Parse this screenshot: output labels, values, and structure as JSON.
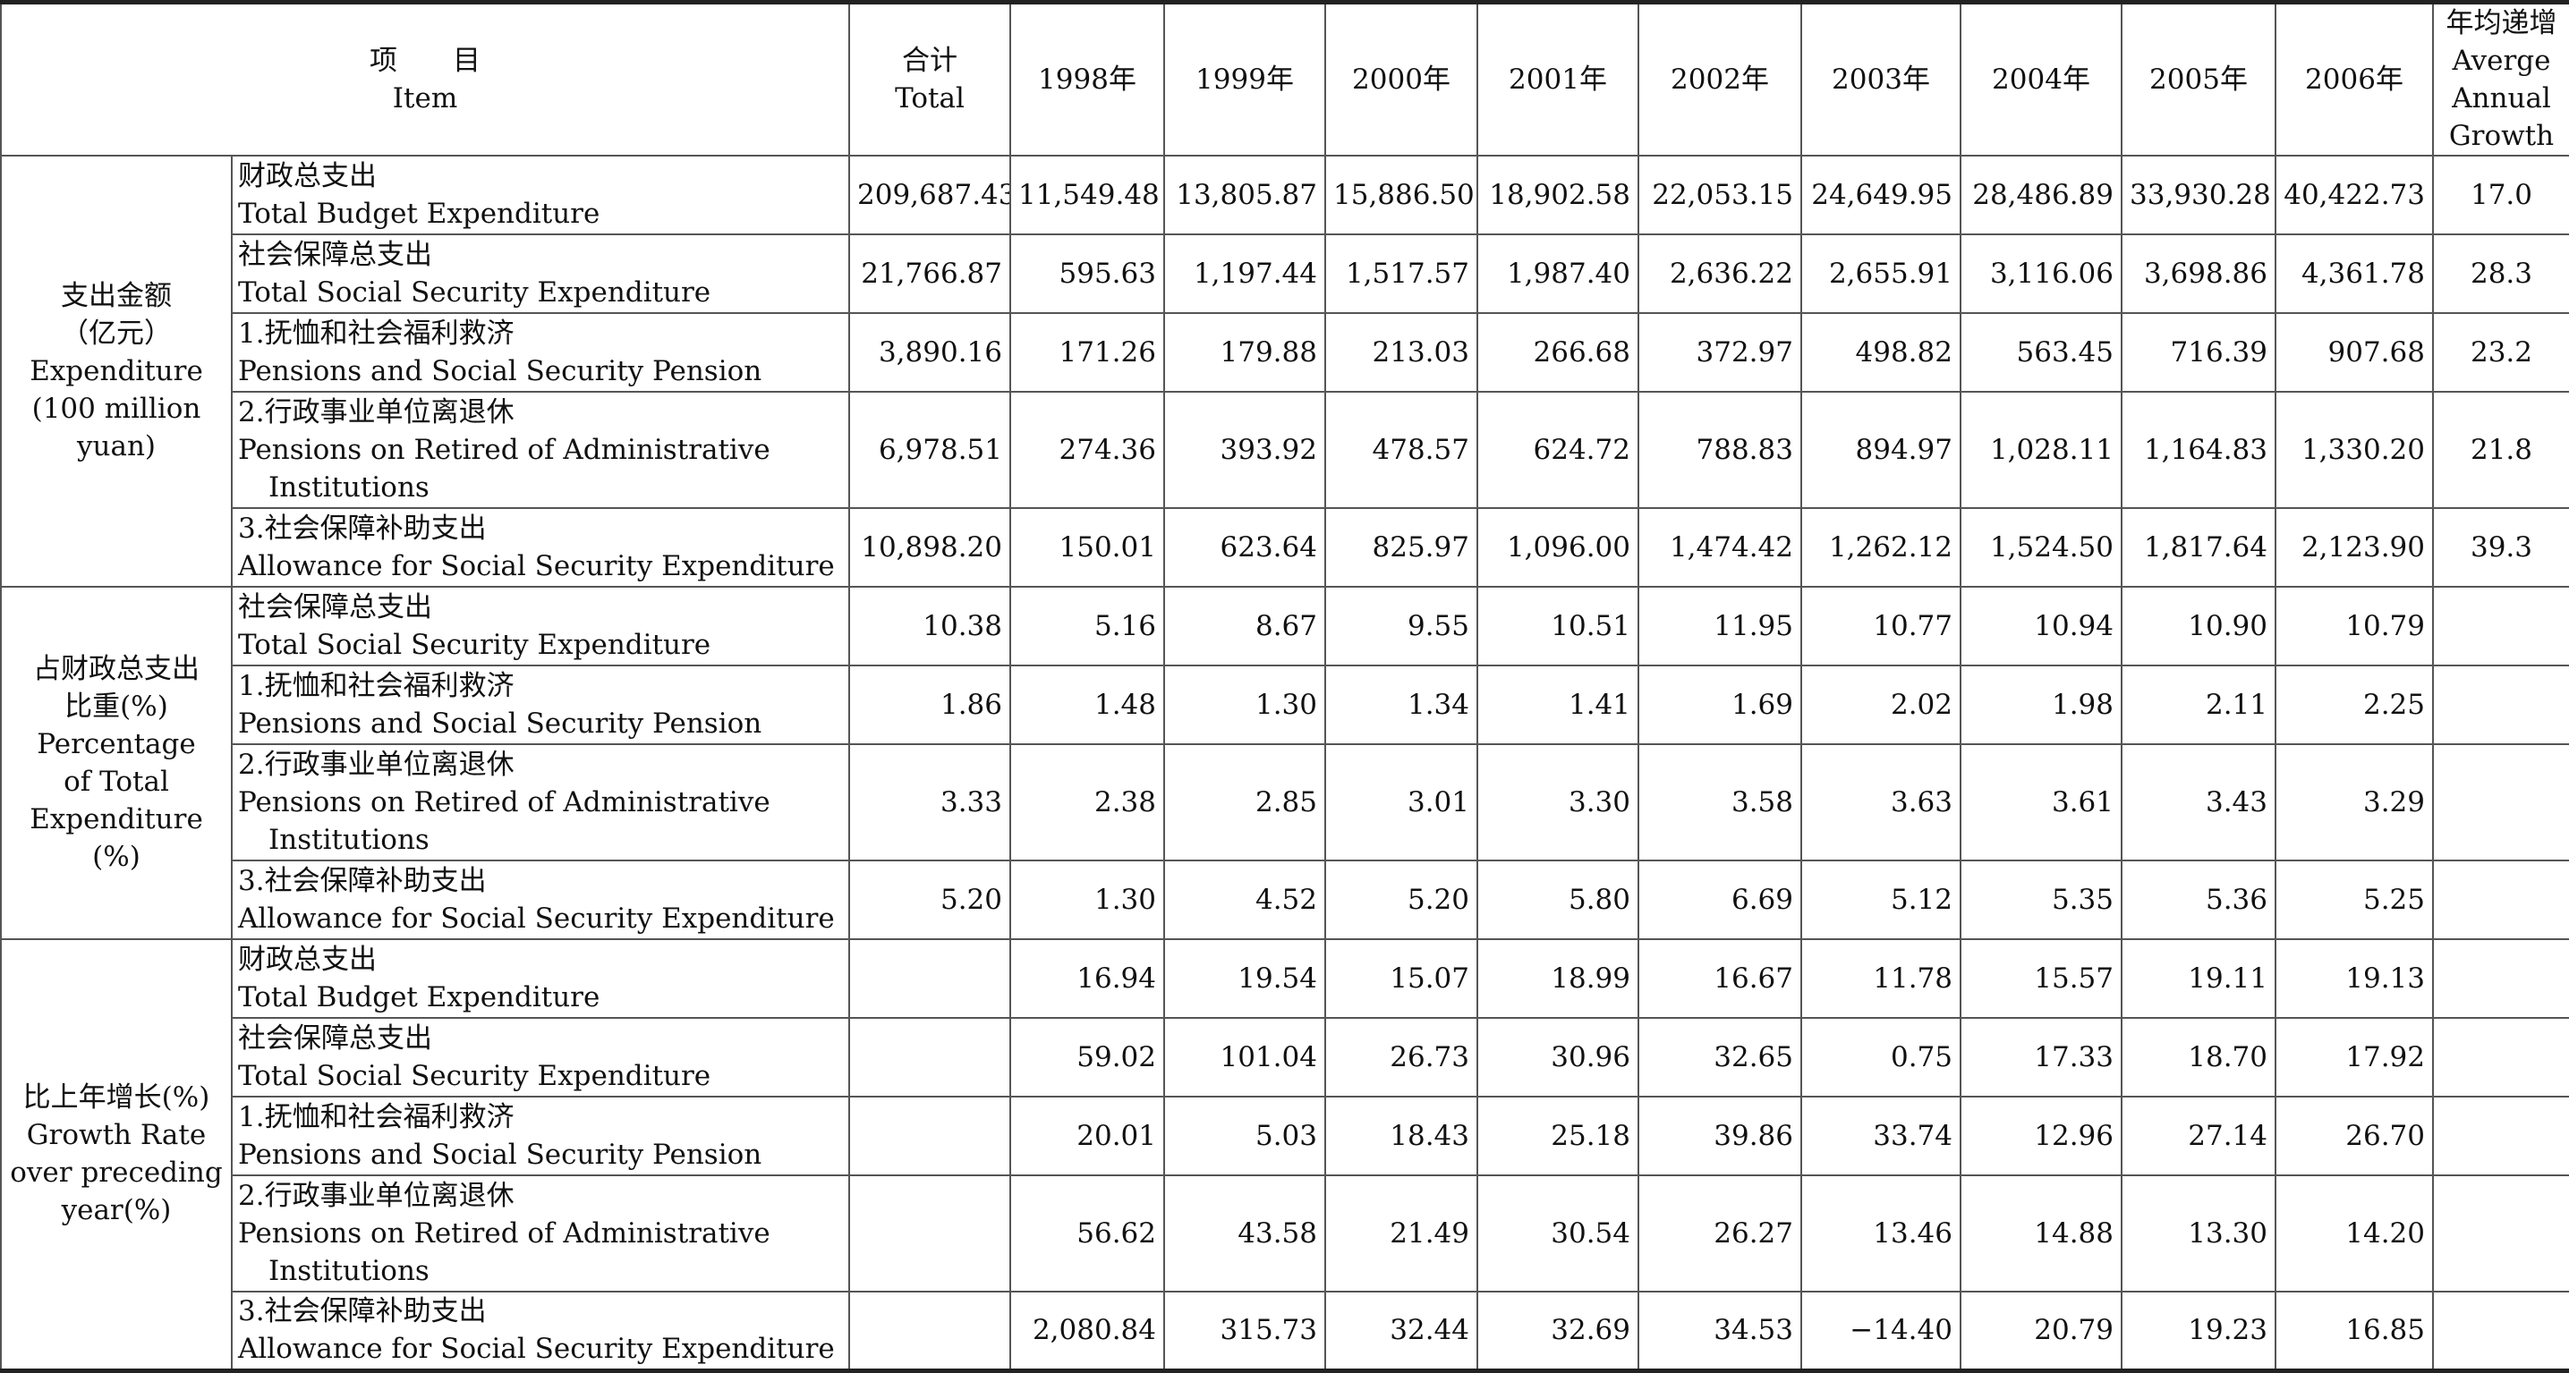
{
  "header": {
    "item_zh": "项　　目",
    "item_en": "Item",
    "total_zh": "合计",
    "total_en": "Total",
    "years": [
      "1998年",
      "1999年",
      "2000年",
      "2001年",
      "2002年",
      "2003年",
      "2004年",
      "2005年",
      "2006年"
    ],
    "growth_zh": "年均递增",
    "growth_en1": "Averge",
    "growth_en2": "Annual",
    "growth_en3": "Growth"
  },
  "groups": [
    {
      "label_lines": [
        "支出金额",
        "（亿元）",
        "Expenditure",
        "(100 million yuan)"
      ],
      "rows": [
        {
          "zh": "财政总支出",
          "en": "Total Budget Expenditure",
          "en2": "",
          "total": "209,687.43",
          "values": [
            "11,549.48",
            "13,805.87",
            "15,886.50",
            "18,902.58",
            "22,053.15",
            "24,649.95",
            "28,486.89",
            "33,930.28",
            "40,422.73"
          ],
          "growth": "17.0"
        },
        {
          "zh": "社会保障总支出",
          "en": "Total Social Security Expenditure",
          "en2": "",
          "total": "21,766.87",
          "values": [
            "595.63",
            "1,197.44",
            "1,517.57",
            "1,987.40",
            "2,636.22",
            "2,655.91",
            "3,116.06",
            "3,698.86",
            "4,361.78"
          ],
          "growth": "28.3"
        },
        {
          "zh": "1.抚恤和社会福利救济",
          "en": "Pensions and Social Security Pension",
          "en2": "",
          "total": "3,890.16",
          "values": [
            "171.26",
            "179.88",
            "213.03",
            "266.68",
            "372.97",
            "498.82",
            "563.45",
            "716.39",
            "907.68"
          ],
          "growth": "23.2"
        },
        {
          "zh": "2.行政事业单位离退休",
          "en": "Pensions on Retired of Administrative",
          "en2": "Institutions",
          "total": "6,978.51",
          "values": [
            "274.36",
            "393.92",
            "478.57",
            "624.72",
            "788.83",
            "894.97",
            "1,028.11",
            "1,164.83",
            "1,330.20"
          ],
          "growth": "21.8"
        },
        {
          "zh": "3.社会保障补助支出",
          "en": "Allowance for Social Security Expenditure",
          "en2": "",
          "total": "10,898.20",
          "values": [
            "150.01",
            "623.64",
            "825.97",
            "1,096.00",
            "1,474.42",
            "1,262.12",
            "1,524.50",
            "1,817.64",
            "2,123.90"
          ],
          "growth": "39.3"
        }
      ]
    },
    {
      "label_lines": [
        "占财政总支出",
        "比重(%)",
        "Percentage",
        "of Total",
        "Expenditure",
        "(%)"
      ],
      "rows": [
        {
          "zh": "社会保障总支出",
          "en": "Total Social Security Expenditure",
          "en2": "",
          "total": "10.38",
          "values": [
            "5.16",
            "8.67",
            "9.55",
            "10.51",
            "11.95",
            "10.77",
            "10.94",
            "10.90",
            "10.79"
          ],
          "growth": ""
        },
        {
          "zh": "1.抚恤和社会福利救济",
          "en": "Pensions and Social Security Pension",
          "en2": "",
          "total": "1.86",
          "values": [
            "1.48",
            "1.30",
            "1.34",
            "1.41",
            "1.69",
            "2.02",
            "1.98",
            "2.11",
            "2.25"
          ],
          "growth": ""
        },
        {
          "zh": "2.行政事业单位离退休",
          "en": "Pensions on Retired of Administrative",
          "en2": "Institutions",
          "total": "3.33",
          "values": [
            "2.38",
            "2.85",
            "3.01",
            "3.30",
            "3.58",
            "3.63",
            "3.61",
            "3.43",
            "3.29"
          ],
          "growth": ""
        },
        {
          "zh": "3.社会保障补助支出",
          "en": "Allowance for Social Security Expenditure",
          "en2": "",
          "total": "5.20",
          "values": [
            "1.30",
            "4.52",
            "5.20",
            "5.80",
            "6.69",
            "5.12",
            "5.35",
            "5.36",
            "5.25"
          ],
          "growth": ""
        }
      ]
    },
    {
      "label_lines": [
        "比上年增长(%)",
        "Growth Rate",
        "over preceding",
        "year(%)"
      ],
      "rows": [
        {
          "zh": "财政总支出",
          "en": "Total Budget Expenditure",
          "en2": "",
          "total": "",
          "values": [
            "16.94",
            "19.54",
            "15.07",
            "18.99",
            "16.67",
            "11.78",
            "15.57",
            "19.11",
            "19.13"
          ],
          "growth": ""
        },
        {
          "zh": "社会保障总支出",
          "en": "Total Social Security Expenditure",
          "en2": "",
          "total": "",
          "values": [
            "59.02",
            "101.04",
            "26.73",
            "30.96",
            "32.65",
            "0.75",
            "17.33",
            "18.70",
            "17.92"
          ],
          "growth": ""
        },
        {
          "zh": "1.抚恤和社会福利救济",
          "en": "Pensions and Social Security Pension",
          "en2": "",
          "total": "",
          "values": [
            "20.01",
            "5.03",
            "18.43",
            "25.18",
            "39.86",
            "33.74",
            "12.96",
            "27.14",
            "26.70"
          ],
          "growth": ""
        },
        {
          "zh": "2.行政事业单位离退休",
          "en": "Pensions on Retired of Administrative",
          "en2": "Institutions",
          "total": "",
          "values": [
            "56.62",
            "43.58",
            "21.49",
            "30.54",
            "26.27",
            "13.46",
            "14.88",
            "13.30",
            "14.20"
          ],
          "growth": ""
        },
        {
          "zh": "3.社会保障补助支出",
          "en": "Allowance for Social Security Expenditure",
          "en2": "",
          "total": "",
          "values": [
            "2,080.84",
            "315.73",
            "32.44",
            "32.69",
            "34.53",
            "−14.40",
            "20.79",
            "19.23",
            "16.85"
          ],
          "growth": ""
        }
      ]
    }
  ]
}
